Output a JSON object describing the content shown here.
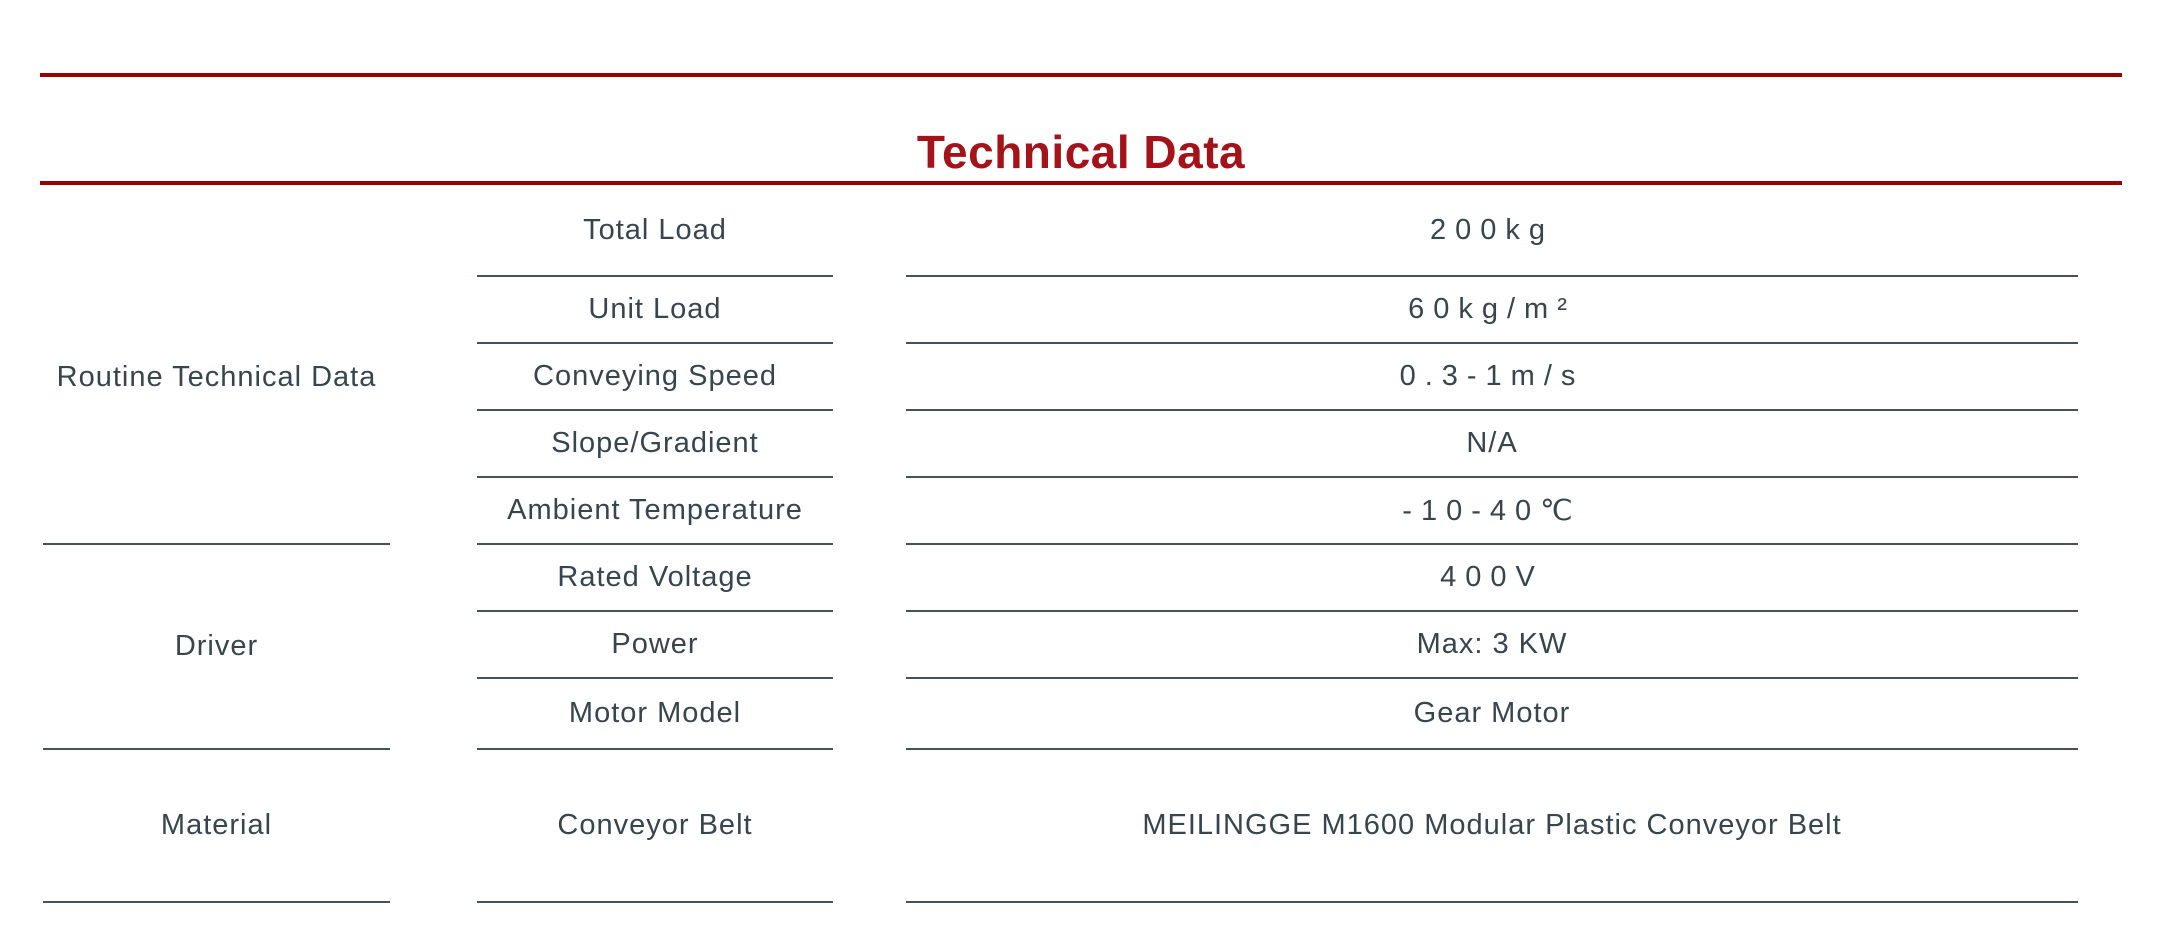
{
  "title": "Technical Data",
  "colors": {
    "title_red": "#a4121a",
    "rule_red": "#990000",
    "text": "#36454e",
    "line": "#44535b",
    "background": "#ffffff"
  },
  "table": {
    "groups": [
      {
        "label": "Routine Technical Data",
        "rows": [
          {
            "param": "Total Load",
            "value": "200kg",
            "spaced": true
          },
          {
            "param": "Unit Load",
            "value": "60kg/m²",
            "spaced": true
          },
          {
            "param": "Conveying Speed",
            "value": "0.3-1m/s",
            "spaced": true
          },
          {
            "param": "Slope/Gradient",
            "value": "N/A",
            "spaced": false
          },
          {
            "param": "Ambient Temperature",
            "value": "-10-40℃",
            "spaced": true
          }
        ]
      },
      {
        "label": "Driver",
        "rows": [
          {
            "param": "Rated Voltage",
            "value": "400V",
            "spaced": true
          },
          {
            "param": "Power",
            "value": "Max: 3 KW",
            "spaced": false
          },
          {
            "param": "Motor Model",
            "value": "Gear Motor",
            "spaced": false
          }
        ]
      },
      {
        "label": "Material",
        "rows": [
          {
            "param": "Conveyor Belt",
            "value": "MEILINGGE M1600 Modular Plastic Conveyor Belt",
            "spaced": false
          }
        ]
      }
    ]
  }
}
